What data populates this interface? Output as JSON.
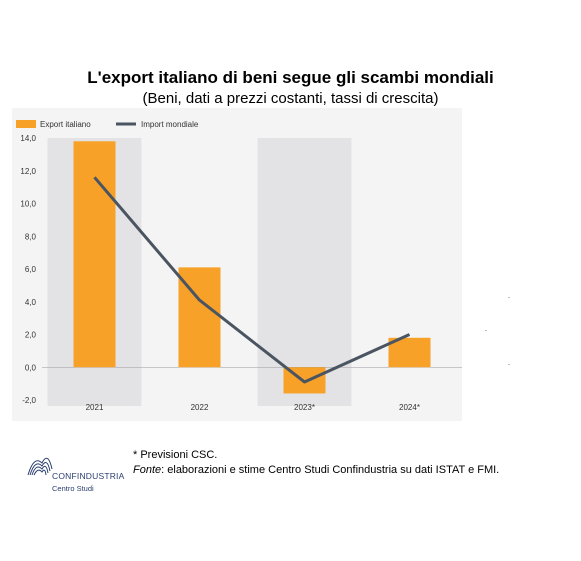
{
  "header": {
    "title": "L'export italiano di beni segue gli scambi mondiali",
    "subtitle": "(Beni, dati a prezzi costanti, tassi di crescita)"
  },
  "chart_data": {
    "type": "bar",
    "categories": [
      "2021",
      "2022",
      "2023*",
      "2024*"
    ],
    "series": [
      {
        "name": "Export italiano",
        "kind": "bar",
        "color": "#f7a128",
        "values": [
          13.8,
          6.1,
          -1.6,
          1.8
        ]
      },
      {
        "name": "Import mondiale",
        "kind": "line",
        "color": "#4a5561",
        "values": [
          11.6,
          4.1,
          -0.9,
          2.0
        ]
      }
    ],
    "ylim": [
      -2.0,
      14.0
    ],
    "yticks": [
      "14,0",
      "12,0",
      "10,0",
      "8,0",
      "6,0",
      "4,0",
      "2,0",
      "0,0",
      "-2,0"
    ],
    "ytick_values": [
      14,
      12,
      10,
      8,
      6,
      4,
      2,
      0,
      -2
    ],
    "shaded_categories": [
      "2021",
      "2023*"
    ],
    "legend_placement": "top-left",
    "grid": false,
    "xlabel": "",
    "ylabel": ""
  },
  "footer": {
    "note": "* Previsioni CSC.",
    "source_label": "Fonte",
    "source_text": ": elaborazioni e stime Centro Studi Confindustria su dati ISTAT e FMI.",
    "logo_name": "CONFINDUSTRIA",
    "logo_sub": "Centro Studi"
  }
}
